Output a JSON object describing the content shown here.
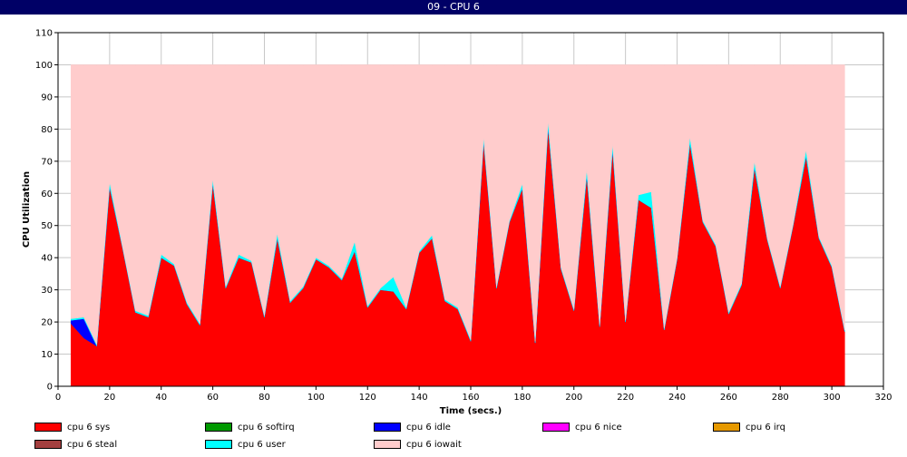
{
  "window": {
    "title": "09 - CPU 6"
  },
  "chart_data": {
    "type": "area",
    "xlabel": "Time (secs.)",
    "ylabel": "CPU Utilization",
    "xlim": [
      0,
      320
    ],
    "ylim": [
      0,
      110
    ],
    "xticks": [
      0,
      20,
      40,
      60,
      80,
      100,
      120,
      140,
      160,
      180,
      200,
      220,
      240,
      260,
      280,
      300,
      320
    ],
    "yticks": [
      0,
      10,
      20,
      30,
      40,
      50,
      60,
      70,
      80,
      90,
      100,
      110
    ],
    "grid": true,
    "stacked": true,
    "x": [
      5,
      10,
      15,
      20,
      25,
      30,
      35,
      40,
      45,
      50,
      55,
      60,
      65,
      70,
      75,
      80,
      85,
      90,
      95,
      100,
      105,
      110,
      115,
      120,
      125,
      130,
      135,
      140,
      145,
      150,
      155,
      160,
      165,
      170,
      175,
      180,
      185,
      190,
      195,
      200,
      205,
      210,
      215,
      220,
      225,
      230,
      235,
      240,
      245,
      250,
      255,
      260,
      265,
      270,
      275,
      280,
      285,
      290,
      295,
      300,
      305
    ],
    "series": [
      {
        "name": "cpu 6 sys",
        "color": "#ff0000",
        "values": [
          19.5,
          15,
          12.5,
          62,
          43,
          23,
          21.5,
          40,
          37.5,
          25.5,
          19,
          63,
          30.5,
          40,
          38.5,
          21.5,
          46,
          26,
          30.5,
          39.5,
          37,
          33,
          42,
          24.5,
          30,
          29.5,
          24,
          41.5,
          46,
          26.5,
          24,
          14,
          76,
          30.5,
          51,
          61.5,
          13.5,
          80.5,
          36.5,
          23.5,
          65.5,
          18.5,
          73.5,
          20,
          58,
          55.5,
          17.5,
          39.5,
          75.5,
          51,
          43.5,
          22.5,
          31.5,
          68,
          45.5,
          30.5,
          50,
          71.5,
          46,
          37,
          17
        ]
      },
      {
        "name": "cpu 6 softirq",
        "color": "#009900",
        "values": [
          0,
          0,
          0,
          0,
          0,
          0,
          0,
          0,
          0,
          0,
          0,
          0,
          0,
          0,
          0,
          0,
          0,
          0,
          0,
          0,
          0,
          0,
          0,
          0,
          0,
          0,
          0,
          0,
          0,
          0,
          0,
          0,
          0,
          0,
          0,
          0,
          0,
          0,
          0,
          0,
          0,
          0,
          0,
          0,
          0,
          0,
          0,
          0,
          0,
          0,
          0,
          0,
          0,
          0,
          0,
          0,
          0,
          0,
          0,
          0,
          0
        ]
      },
      {
        "name": "cpu 6 idle",
        "color": "#0000ff",
        "values": [
          1,
          6,
          0,
          0,
          0,
          0,
          0,
          0,
          0,
          0,
          0,
          0,
          0,
          0,
          0,
          0,
          0,
          0,
          0,
          0,
          0,
          0,
          0,
          0,
          0,
          0,
          0,
          0,
          0,
          0,
          0,
          0,
          0,
          0,
          0,
          0,
          0,
          0,
          0,
          0,
          0,
          0,
          0,
          0,
          0,
          0,
          0,
          0,
          0,
          0,
          0,
          0,
          0,
          0,
          0,
          0,
          0,
          0,
          0,
          0,
          0
        ]
      },
      {
        "name": "cpu 6 nice",
        "color": "#ff00ff",
        "values": [
          0,
          0,
          0,
          0,
          0,
          0,
          0,
          0,
          0,
          0,
          0,
          0,
          0,
          0,
          0,
          0,
          0,
          0,
          0,
          0,
          0,
          0,
          0,
          0,
          0,
          0,
          0,
          0,
          0,
          0,
          0,
          0,
          0,
          0,
          0,
          0,
          0,
          0,
          0,
          0,
          0,
          0,
          0,
          0,
          0,
          0,
          0,
          0,
          0,
          0,
          0,
          0,
          0,
          0,
          0,
          0,
          0,
          0,
          0,
          0,
          0
        ]
      },
      {
        "name": "cpu 6 irq",
        "color": "#e69900",
        "values": [
          0,
          0,
          0,
          0,
          0,
          0,
          0,
          0,
          0,
          0,
          0,
          0,
          0,
          0,
          0,
          0,
          0,
          0,
          0,
          0,
          0,
          0,
          0,
          0,
          0,
          0,
          0,
          0,
          0,
          0,
          0,
          0,
          0,
          0,
          0,
          0,
          0,
          0,
          0,
          0,
          0,
          0,
          0,
          0,
          0,
          0,
          0,
          0,
          0,
          0,
          0,
          0,
          0,
          0,
          0,
          0,
          0,
          0,
          0,
          0,
          0
        ]
      },
      {
        "name": "cpu 6 steal",
        "color": "#a33f3f",
        "values": [
          0,
          0,
          0,
          0,
          0,
          0,
          0,
          0,
          0,
          0,
          0,
          0,
          0,
          0,
          0,
          0,
          0,
          0,
          0,
          0,
          0,
          0,
          0,
          0,
          0,
          0,
          0,
          0,
          0,
          0,
          0,
          0,
          0,
          0,
          0,
          0,
          0,
          0,
          0,
          0,
          0,
          0,
          0,
          0,
          0,
          0,
          0,
          0,
          0,
          0,
          0,
          0,
          0,
          0,
          0,
          0,
          0,
          0,
          0,
          0,
          0
        ]
      },
      {
        "name": "cpu 6 user",
        "color": "#00ffff",
        "values": [
          0.5,
          0.5,
          0.5,
          1.5,
          0.5,
          0.5,
          0.5,
          1,
          0.5,
          0.5,
          0.5,
          1.5,
          0.5,
          1,
          0.5,
          0.5,
          1.5,
          0.5,
          0.5,
          0.5,
          0.5,
          0.5,
          3,
          0.5,
          0.5,
          4.5,
          0.5,
          0.5,
          1,
          0.5,
          0.5,
          0.5,
          1.5,
          0.5,
          0.5,
          1.5,
          0.5,
          2,
          0.5,
          0.5,
          2,
          0.5,
          2,
          0.5,
          1.5,
          5,
          0.5,
          0.5,
          2,
          0.5,
          0.5,
          0.5,
          0.5,
          2,
          0.5,
          0.5,
          0.5,
          2,
          0.5,
          0.5,
          0.5
        ]
      },
      {
        "name": "cpu 6 iowait",
        "color": "#ffcccc",
        "values": [
          79,
          78.5,
          87,
          36.5,
          56.5,
          76.5,
          78,
          59,
          62,
          74,
          80.5,
          35.5,
          69,
          59,
          61,
          78,
          52.5,
          73.5,
          69,
          60,
          62.5,
          66.5,
          55,
          75,
          69.5,
          66,
          75.5,
          58,
          53,
          73,
          75.5,
          85.5,
          22.5,
          69,
          48.5,
          37,
          86,
          17.5,
          63,
          76,
          32.5,
          81,
          24.5,
          79.5,
          40.5,
          39.5,
          82,
          60,
          22.5,
          48.5,
          56,
          77,
          68,
          30,
          54,
          69,
          49.5,
          26.5,
          53.5,
          62.5,
          82.5
        ]
      }
    ]
  }
}
